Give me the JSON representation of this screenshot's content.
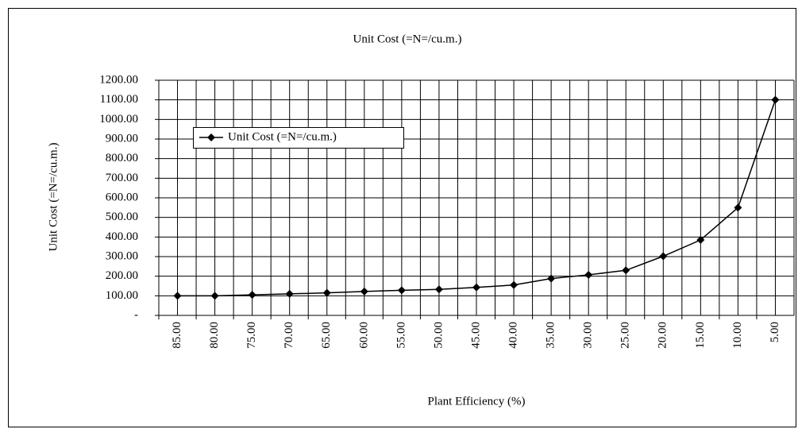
{
  "chart_data": {
    "type": "line",
    "title": "Unit Cost (=N=/cu.m.)",
    "x_label": "Plant Efficiency (%)",
    "y_label": "Unit Cost (=N=/cu.m.)",
    "categories": [
      "85.00",
      "80.00",
      "75.00",
      "70.00",
      "65.00",
      "60.00",
      "55.00",
      "50.00",
      "45.00",
      "40.00",
      "35.00",
      "30.00",
      "25.00",
      "20.00",
      "15.00",
      "10.00",
      "5.00"
    ],
    "series": [
      {
        "name": "Unit Cost (=N=/cu.m.)",
        "color": "#000000",
        "values": [
          100,
          100,
          105,
          110,
          115,
          122,
          128,
          133,
          143,
          155,
          188,
          207,
          230,
          302,
          385,
          550,
          1100
        ]
      }
    ],
    "ylim": [
      0,
      1200
    ],
    "yticks": [
      {
        "value": 0,
        "label": "-"
      },
      {
        "value": 100,
        "label": "100.00"
      },
      {
        "value": 200,
        "label": "200.00"
      },
      {
        "value": 300,
        "label": "300.00"
      },
      {
        "value": 400,
        "label": "400.00"
      },
      {
        "value": 500,
        "label": "500.00"
      },
      {
        "value": 600,
        "label": "600.00"
      },
      {
        "value": 700,
        "label": "700.00"
      },
      {
        "value": 800,
        "label": "800.00"
      },
      {
        "value": 900,
        "label": "900.00"
      },
      {
        "value": 1000,
        "label": "1000.00"
      },
      {
        "value": 1100,
        "label": "1100.00"
      },
      {
        "value": 1200,
        "label": "1200.00"
      }
    ],
    "grid": true,
    "legend": "upper left"
  }
}
